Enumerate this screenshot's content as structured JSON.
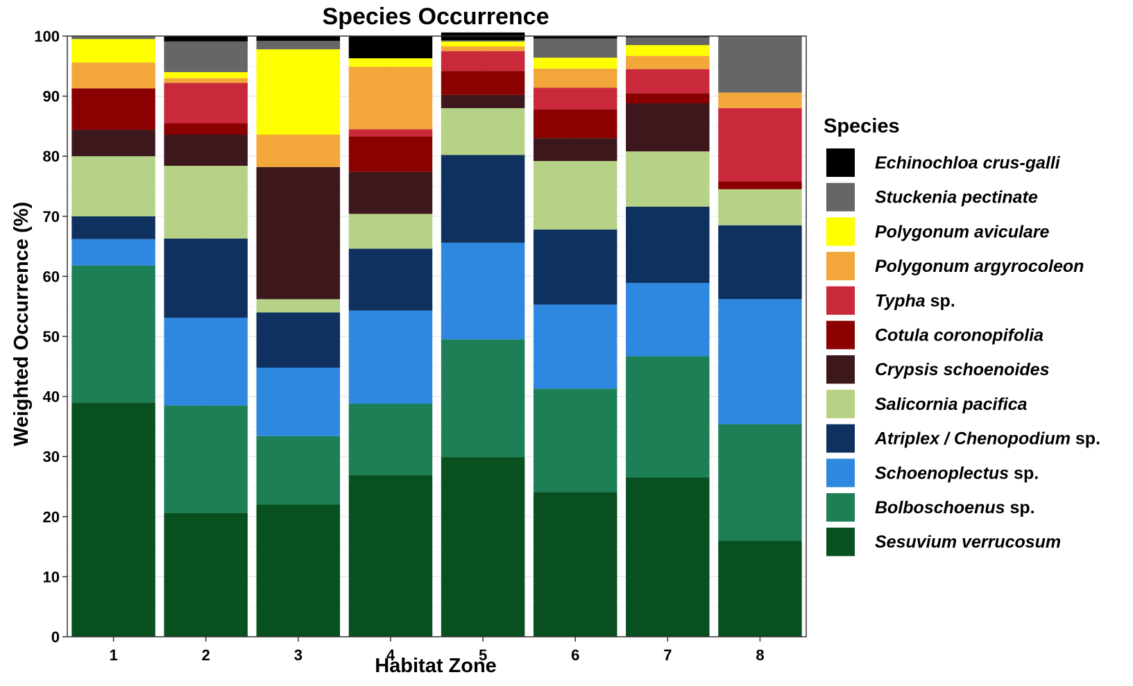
{
  "chart_data": {
    "type": "bar",
    "stacked": true,
    "title": "Species Occurrence",
    "xlabel": "Habitat Zone",
    "ylabel": "Weighted Occurrence (%)",
    "ylim": [
      0,
      100
    ],
    "yticks": [
      0,
      10,
      20,
      30,
      40,
      50,
      60,
      70,
      80,
      90,
      100
    ],
    "grid": true,
    "legend_title": "Species",
    "legend_position": "right",
    "categories": [
      "1",
      "2",
      "3",
      "4",
      "5",
      "6",
      "7",
      "8"
    ],
    "series": [
      {
        "name": "Sesuvium verrucosum",
        "italic": "Sesuvium verrucosum",
        "suffix": "",
        "color": "#08501f",
        "values": [
          39.0,
          20.6,
          22.0,
          26.9,
          29.9,
          24.1,
          26.5,
          16.0
        ]
      },
      {
        "name": "Bolboschoenus sp.",
        "italic": "Bolboschoenus",
        "suffix": " sp.",
        "color": "#1d7f56",
        "values": [
          22.8,
          17.9,
          11.4,
          11.9,
          19.6,
          17.2,
          20.2,
          19.4
        ]
      },
      {
        "name": "Schoenoplectus sp.",
        "italic": "Schoenoplectus",
        "suffix": " sp.",
        "color": "#2e88e0",
        "values": [
          4.4,
          14.6,
          11.4,
          15.5,
          16.1,
          14.0,
          12.2,
          20.8
        ]
      },
      {
        "name": "Atriplex / Chenopodium sp.",
        "italic": "Atriplex / Chenopodium",
        "suffix": " sp.",
        "color": "#0f3160",
        "values": [
          3.8,
          13.2,
          9.2,
          10.3,
          14.6,
          12.5,
          12.7,
          12.3
        ]
      },
      {
        "name": "Salicornia pacifica",
        "italic": "Salicornia pacifica",
        "suffix": "",
        "color": "#b6d287",
        "values": [
          10.0,
          12.1,
          2.2,
          5.8,
          7.8,
          11.4,
          9.2,
          6.0
        ]
      },
      {
        "name": "Crypsis schoenoides",
        "italic": "Crypsis schoenoides",
        "suffix": "",
        "color": "#3c171b",
        "values": [
          4.4,
          5.2,
          22.0,
          7.0,
          2.2,
          3.8,
          8.0,
          0.0
        ]
      },
      {
        "name": "Cotula coronopifolia",
        "italic": "Cotula coronopifolia",
        "suffix": "",
        "color": "#8b0000",
        "values": [
          6.9,
          1.9,
          0.0,
          5.9,
          4.0,
          4.8,
          1.7,
          1.3
        ]
      },
      {
        "name": "Typha sp.",
        "italic": "Typha",
        "suffix": " sp.",
        "color": "#c9293a",
        "values": [
          0.0,
          6.7,
          0.0,
          1.2,
          3.3,
          3.6,
          4.0,
          12.2
        ]
      },
      {
        "name": "Polygonum argyrocoleon",
        "italic": "Polygonum argyrocoleon",
        "suffix": "",
        "color": "#f3a63a",
        "values": [
          4.3,
          0.8,
          5.4,
          10.4,
          0.8,
          3.2,
          2.2,
          2.6
        ]
      },
      {
        "name": "Polygonum aviculare",
        "italic": "Polygonum aviculare",
        "suffix": "",
        "color": "#ffff00",
        "values": [
          3.9,
          1.0,
          14.2,
          1.4,
          0.8,
          1.8,
          1.8,
          0.0
        ]
      },
      {
        "name": "Stuckenia pectinate",
        "italic": "Stuckenia pectinate",
        "suffix": "",
        "color": "#666666",
        "values": [
          0.5,
          5.1,
          1.4,
          0.0,
          0.2,
          3.2,
          1.3,
          9.4
        ]
      },
      {
        "name": "Echinochloa crus-galli",
        "italic": "Echinochloa crus-galli",
        "suffix": "",
        "color": "#000000",
        "values": [
          0.0,
          0.9,
          0.8,
          3.7,
          1.3,
          0.4,
          0.2,
          0.0
        ]
      }
    ]
  }
}
